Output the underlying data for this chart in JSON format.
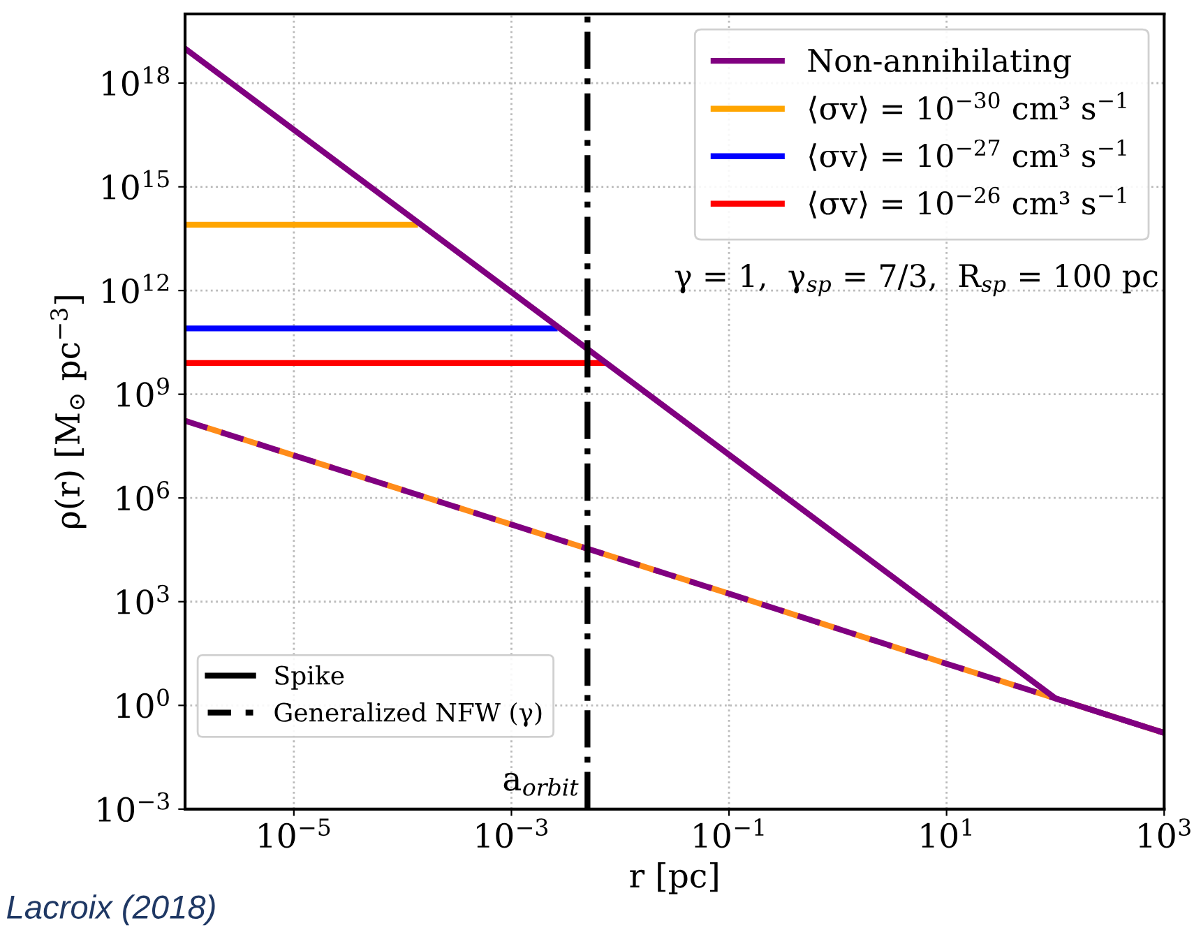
{
  "chart_data": {
    "type": "line",
    "xlabel": "r [pc]",
    "ylabel": "ρ(r) [M$_{⊙}$ pc$^{−3}$]",
    "log": "xy",
    "grid": true,
    "legend": "top right",
    "marker": "none",
    "xlim": [
      1e-06,
      1000
    ],
    "ylim": [
      0.001,
      1e+20
    ],
    "xticks": [
      {
        "value": 1e-05,
        "label": "10$^{−5}$"
      },
      {
        "value": 0.001,
        "label": "10$^{−3}$"
      },
      {
        "value": 0.1,
        "label": "10$^{−1}$"
      },
      {
        "value": 10,
        "label": "10$^{1}$"
      },
      {
        "value": 1000,
        "label": "10$^{3}$"
      }
    ],
    "yticks": [
      {
        "value": 0.001,
        "label": "10$^{−3}$"
      },
      {
        "value": 1,
        "label": "10$^{0}$"
      },
      {
        "value": 1000,
        "label": "10$^{3}$"
      },
      {
        "value": 1000000.0,
        "label": "10$^{6}$"
      },
      {
        "value": 1000000000.0,
        "label": "10$^{9}$"
      },
      {
        "value": 1000000000000.0,
        "label": "10$^{12}$"
      },
      {
        "value": 1000000000000000.0,
        "label": "10$^{15}$"
      },
      {
        "value": 1e+18,
        "label": "10$^{18}$"
      }
    ],
    "series": [
      {
        "color": "#ff8c1a",
        "line_style": "dashed",
        "x": [
          1e-06,
          0.001,
          0.1,
          10,
          100,
          1000
        ],
        "values": [
          170000000.0,
          170000.0,
          1700,
          16,
          1.6,
          0.16
        ]
      },
      {
        "color": "#800080",
        "line_style": "dashed",
        "x": [
          1e-06,
          0.001,
          0.1,
          10,
          100,
          1000
        ],
        "values": [
          170000000.0,
          170000.0,
          1700,
          16,
          1.6,
          0.16
        ]
      },
      {
        "name": "⟨σv⟩ = 10$^{−30}$ cm³ s$^{−1}$",
        "color": "#ffa500",
        "line_style": "solid",
        "x": [
          1e-06,
          0.00013
        ],
        "values": [
          80000000000000.0,
          80000000000000.0
        ]
      },
      {
        "name": "⟨σv⟩ = 10$^{−27}$ cm³ s$^{−1}$",
        "color": "#0000ff",
        "line_style": "solid",
        "x": [
          1e-06,
          0.0025
        ],
        "values": [
          80000000000.0,
          80000000000.0
        ]
      },
      {
        "name": "⟨σv⟩ = 10$^{−26}$ cm³ s$^{−1}$",
        "color": "#ff0000",
        "line_style": "solid",
        "x": [
          1e-06,
          0.007
        ],
        "values": [
          8000000000.0,
          8000000000.0
        ]
      },
      {
        "name": "Non-annihilating",
        "color": "#800080",
        "line_style": "solid",
        "x": [
          1e-06,
          100,
          1000
        ],
        "values": [
          1e+19,
          1.6,
          0.16
        ]
      }
    ],
    "ref_lines": [
      {
        "axis": "x",
        "value": 0.005,
        "label": "a$_{orbit}$",
        "color": "#000000",
        "line_style": "dashdot"
      }
    ],
    "annotations": [
      "γ = 1,  γ$_{sp}$ = 7/3,  R$_{sp}$ = 100 pc",
      "Spike",
      "Generalized NFW (γ)",
      "Lacroix (2018)"
    ]
  }
}
